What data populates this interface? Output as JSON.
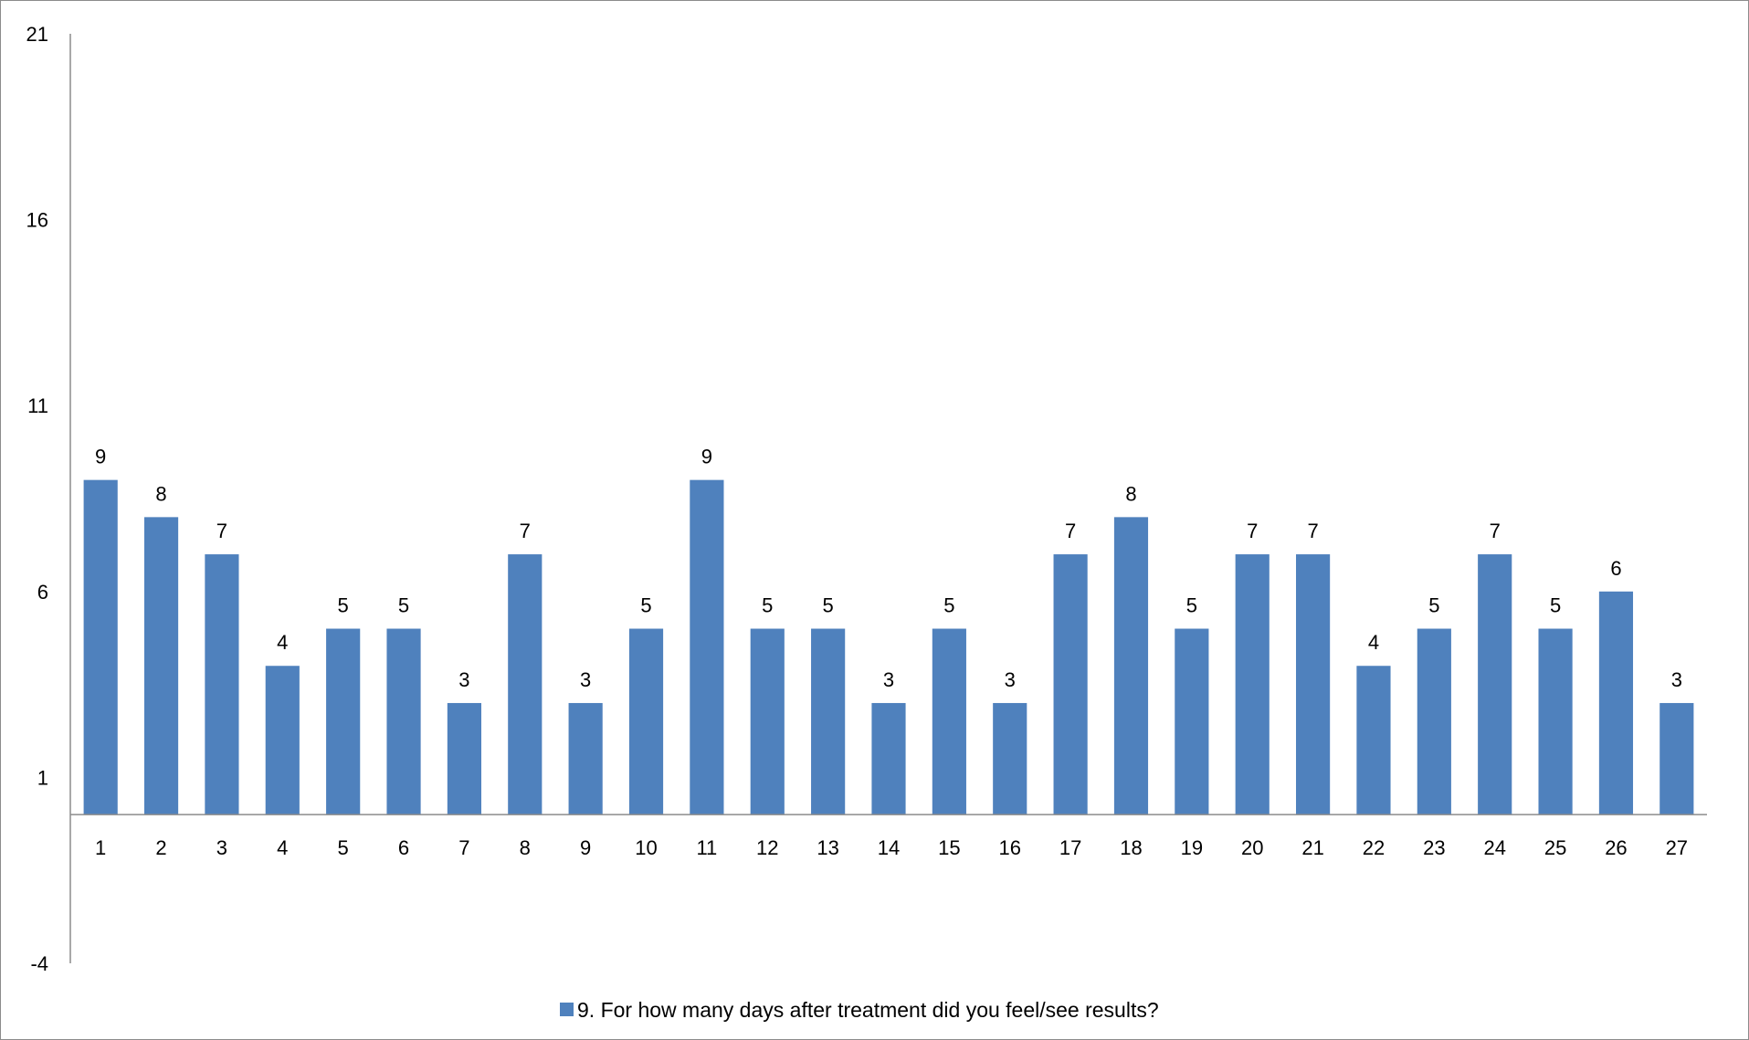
{
  "chart_data": {
    "type": "bar",
    "title": "",
    "xlabel": "",
    "ylabel": "",
    "categories": [
      "1",
      "2",
      "3",
      "4",
      "5",
      "6",
      "7",
      "8",
      "9",
      "10",
      "11",
      "12",
      "13",
      "14",
      "15",
      "16",
      "17",
      "18",
      "19",
      "20",
      "21",
      "22",
      "23",
      "24",
      "25",
      "26",
      "27"
    ],
    "series": [
      {
        "name": "9. For how many days after treatment did you feel/see results?",
        "color": "#4f81bd",
        "values": [
          9,
          8,
          7,
          4,
          5,
          5,
          3,
          7,
          3,
          5,
          9,
          5,
          5,
          3,
          5,
          3,
          7,
          8,
          5,
          7,
          7,
          4,
          5,
          7,
          5,
          6,
          3
        ]
      }
    ],
    "ylim": [
      -4,
      21
    ],
    "y_ticks": [
      "21",
      "16",
      "11",
      "6",
      "1",
      "-4"
    ],
    "x_axis_crosses_at": 0,
    "data_labels": true,
    "grid": false,
    "legend_position": "bottom"
  }
}
